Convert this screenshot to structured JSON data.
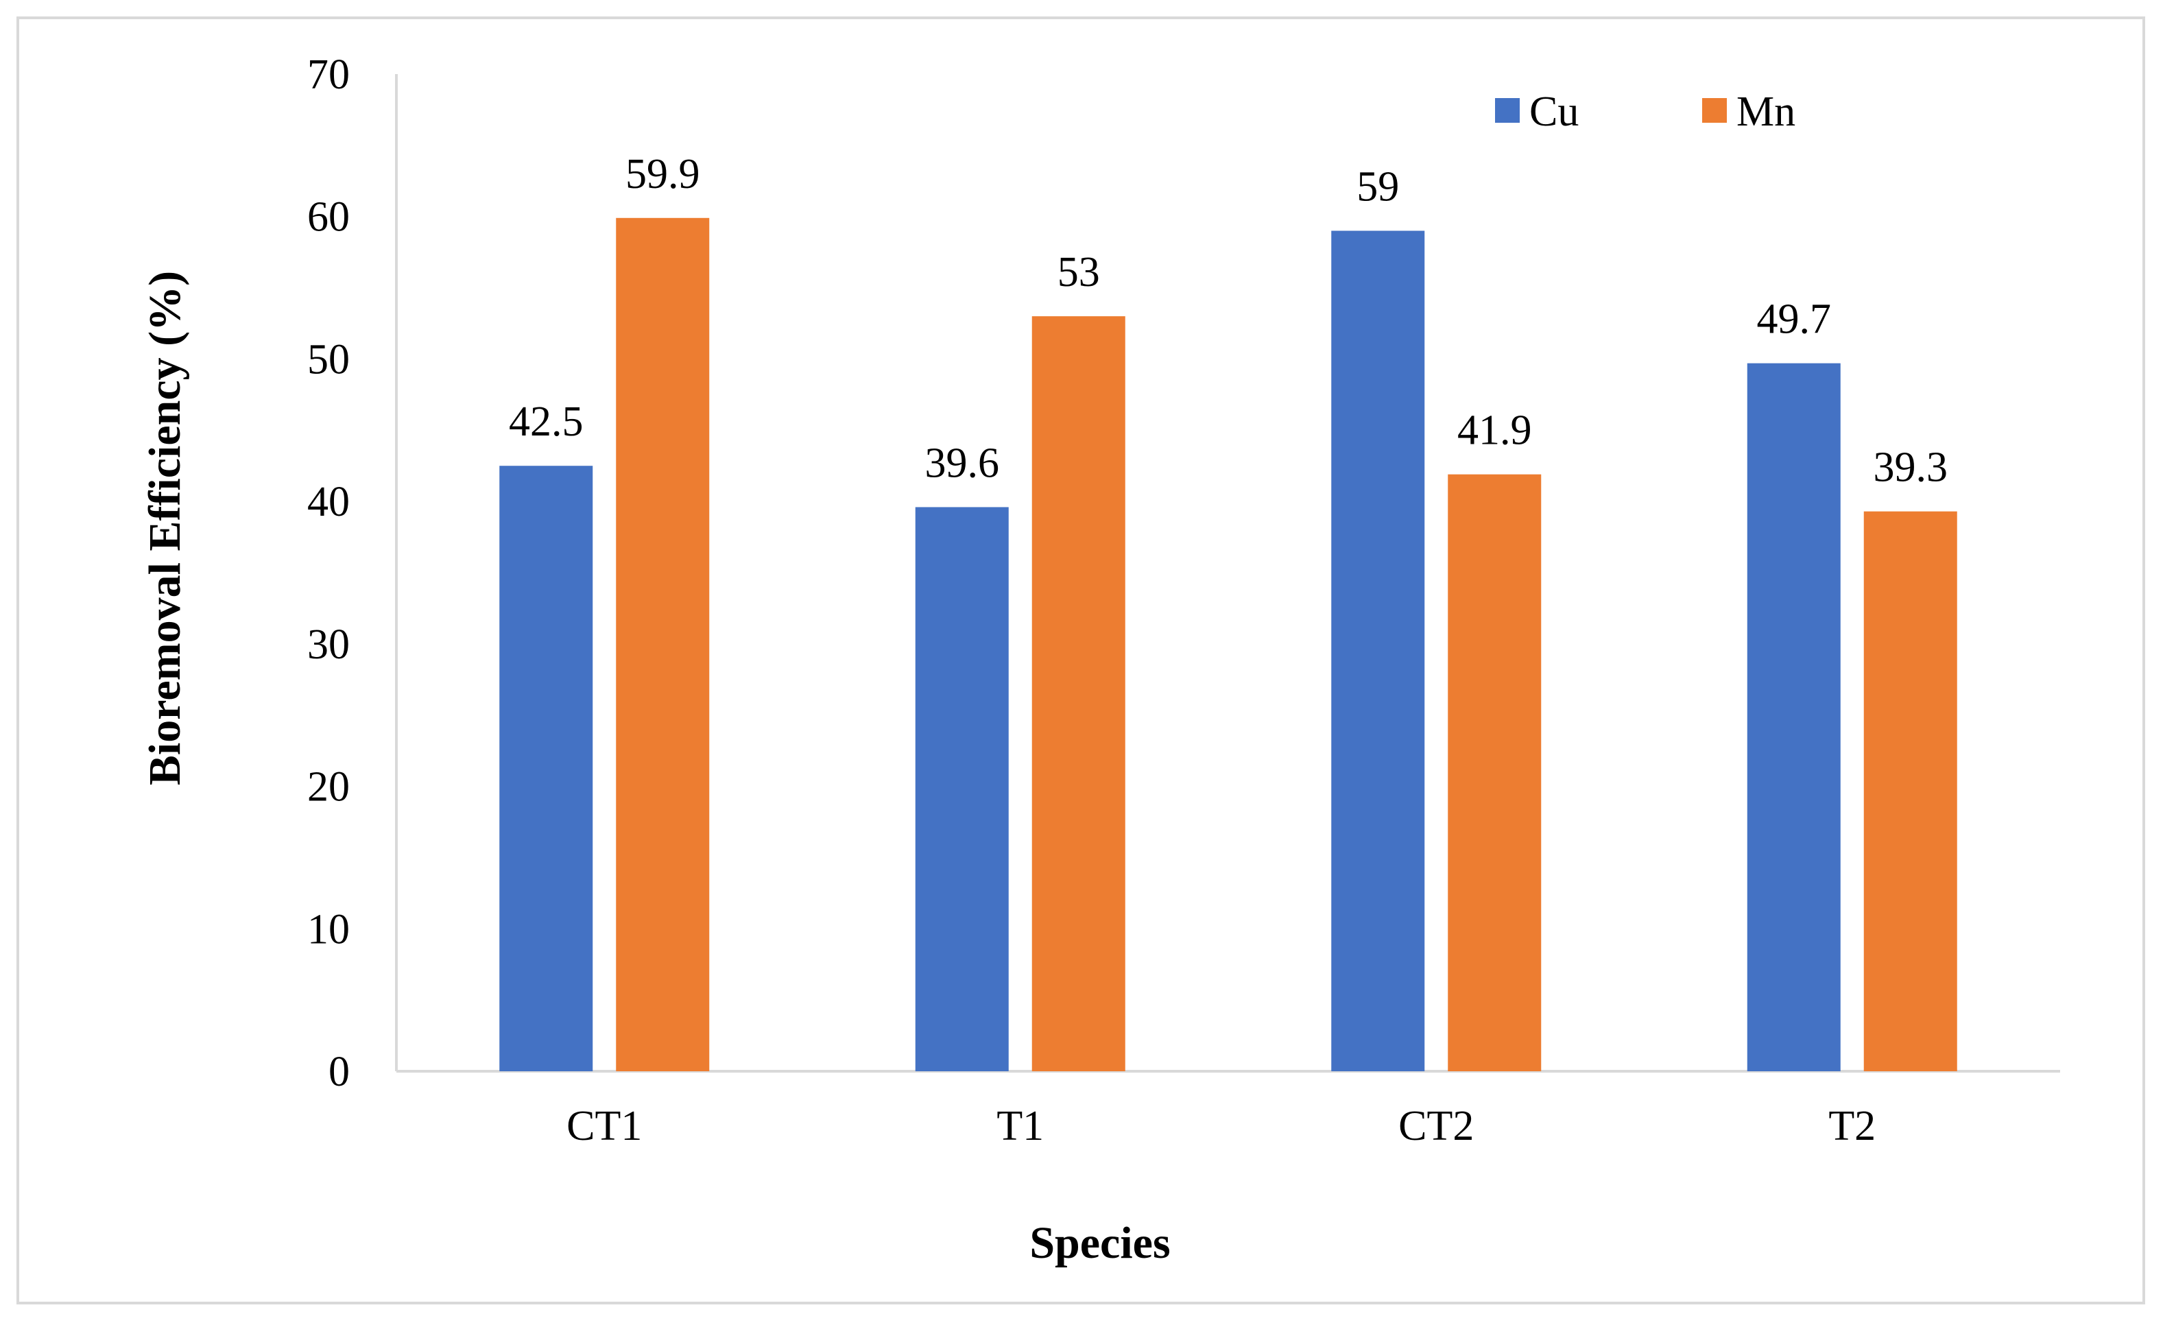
{
  "chart_data": {
    "type": "bar",
    "title": "",
    "xlabel": "Species",
    "ylabel": "Bioremoval Efficiency (%)",
    "categories": [
      "CT1",
      "T1",
      "CT2",
      "T2"
    ],
    "series": [
      {
        "name": "Cu",
        "color": "#4472c4",
        "values": [
          42.5,
          39.6,
          59,
          49.7
        ]
      },
      {
        "name": "Mn",
        "color": "#ed7d31",
        "values": [
          59.9,
          53,
          41.9,
          39.3
        ]
      }
    ],
    "data_labels": [
      [
        "42.5",
        "39.6",
        "59",
        "49.7"
      ],
      [
        "59.9",
        "53",
        "41.9",
        "39.3"
      ]
    ],
    "ylim": [
      0,
      70
    ],
    "yticks": [
      "0",
      "10",
      "20",
      "30",
      "40",
      "50",
      "60",
      "70"
    ],
    "grid": false,
    "legend_position": "top-right"
  },
  "colors": {
    "axis": "#d9d9d9",
    "frame": "#d9d9d9"
  }
}
